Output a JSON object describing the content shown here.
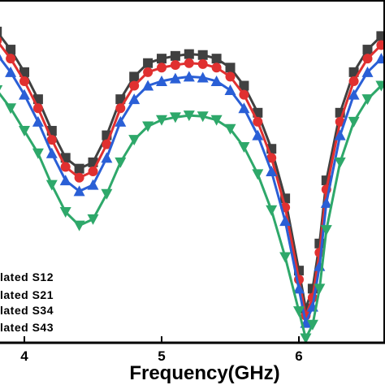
{
  "chart_data": {
    "type": "line",
    "title": "",
    "xlabel": "Frequency(GHz)",
    "ylabel": "",
    "xlim": [
      3.8,
      6.6
    ],
    "ylim": [
      -44,
      -6
    ],
    "x_ticks": [
      "4",
      "5",
      "6"
    ],
    "x_tick_values": [
      4,
      5,
      6
    ],
    "grid": false,
    "legend_position": "bottom-left",
    "series": [
      {
        "name": "lated S12",
        "color": "#404040",
        "marker": "square",
        "x": [
          3.8,
          3.9,
          4.0,
          4.1,
          4.2,
          4.3,
          4.4,
          4.5,
          4.6,
          4.7,
          4.8,
          4.9,
          5.0,
          5.1,
          5.2,
          5.3,
          5.4,
          5.5,
          5.6,
          5.7,
          5.8,
          5.9,
          6.0,
          6.05,
          6.1,
          6.15,
          6.2,
          6.3,
          6.4,
          6.5,
          6.6
        ],
        "values": [
          -9.5,
          -11.5,
          -14.0,
          -17.0,
          -20.5,
          -23.5,
          -24.7,
          -24.0,
          -21.0,
          -17.0,
          -14.5,
          -13.0,
          -12.5,
          -12.2,
          -12.0,
          -12.1,
          -12.5,
          -13.5,
          -15.5,
          -18.5,
          -22.5,
          -28.0,
          -36.0,
          -40.2,
          -38.0,
          -33.0,
          -26.0,
          -18.5,
          -14.0,
          -11.5,
          -10.0
        ]
      },
      {
        "name": "lated S21",
        "color": "#e03030",
        "marker": "circle",
        "x": [
          3.8,
          3.9,
          4.0,
          4.1,
          4.2,
          4.3,
          4.4,
          4.5,
          4.6,
          4.7,
          4.8,
          4.9,
          5.0,
          5.1,
          5.2,
          5.3,
          5.4,
          5.5,
          5.6,
          5.7,
          5.8,
          5.9,
          6.0,
          6.05,
          6.1,
          6.15,
          6.2,
          6.3,
          6.4,
          6.5,
          6.6
        ],
        "values": [
          -10.5,
          -12.5,
          -15.0,
          -18.0,
          -21.5,
          -24.5,
          -25.7,
          -25.0,
          -22.0,
          -18.0,
          -15.5,
          -14.0,
          -13.5,
          -13.2,
          -13.0,
          -13.1,
          -13.5,
          -14.5,
          -16.5,
          -19.5,
          -23.5,
          -29.0,
          -37.0,
          -41.0,
          -39.0,
          -34.0,
          -27.0,
          -19.5,
          -15.0,
          -12.5,
          -11.0
        ]
      },
      {
        "name": "lated S34",
        "color": "#2a5fd6",
        "marker": "triangle-up",
        "x": [
          3.8,
          3.9,
          4.0,
          4.1,
          4.2,
          4.3,
          4.4,
          4.5,
          4.6,
          4.7,
          4.8,
          4.9,
          5.0,
          5.1,
          5.2,
          5.3,
          5.4,
          5.5,
          5.6,
          5.7,
          5.8,
          5.9,
          6.0,
          6.05,
          6.1,
          6.15,
          6.2,
          6.3,
          6.4,
          6.5,
          6.6
        ],
        "values": [
          -12.0,
          -14.0,
          -16.5,
          -19.5,
          -23.0,
          -26.0,
          -27.2,
          -26.5,
          -23.5,
          -19.5,
          -17.0,
          -15.5,
          -15.0,
          -14.7,
          -14.5,
          -14.6,
          -15.0,
          -16.0,
          -18.0,
          -21.0,
          -25.0,
          -30.5,
          -38.0,
          -41.8,
          -40.0,
          -35.5,
          -28.5,
          -21.0,
          -16.5,
          -14.0,
          -12.5
        ]
      },
      {
        "name": "lated S43",
        "color": "#2ea86a",
        "marker": "triangle-down",
        "x": [
          3.8,
          3.9,
          4.0,
          4.1,
          4.2,
          4.3,
          4.4,
          4.5,
          4.6,
          4.7,
          4.8,
          4.9,
          5.0,
          5.1,
          5.2,
          5.3,
          5.4,
          5.5,
          5.6,
          5.7,
          5.8,
          5.9,
          6.0,
          6.05,
          6.1,
          6.15,
          6.2,
          6.3,
          6.4,
          6.5,
          6.6
        ],
        "values": [
          -16.0,
          -18.0,
          -20.5,
          -23.0,
          -26.5,
          -29.5,
          -31.0,
          -30.3,
          -27.5,
          -24.0,
          -21.5,
          -20.0,
          -19.3,
          -19.0,
          -18.8,
          -18.9,
          -19.3,
          -20.3,
          -22.3,
          -25.3,
          -29.3,
          -34.5,
          -40.5,
          -43.5,
          -42.0,
          -38.0,
          -31.5,
          -24.0,
          -19.5,
          -17.0,
          -15.5
        ]
      }
    ]
  }
}
